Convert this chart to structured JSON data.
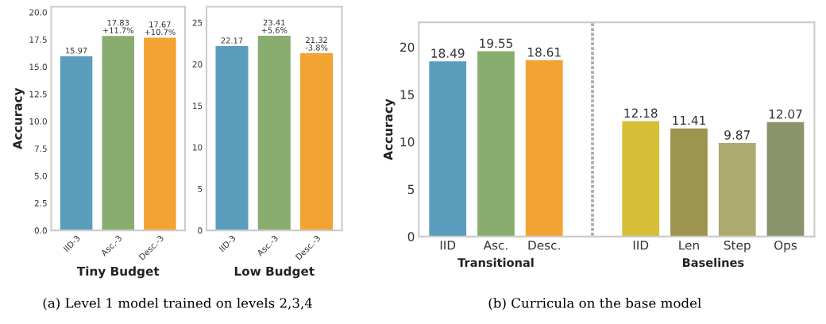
{
  "chart_data": [
    {
      "type": "bar",
      "categories": [
        "IID-3",
        "Asc.-3",
        "Desc.-3"
      ],
      "values": [
        15.97,
        17.83,
        17.67
      ],
      "colors": [
        "#5a9dbd",
        "#88ad6f",
        "#f2a332"
      ],
      "value_labels": [
        "15.97",
        "17.83\n+11.7%",
        "17.67\n+10.7%"
      ],
      "xlabel": "Tiny Budget",
      "ylabel": "Accuracy",
      "ylim": [
        0,
        20.5
      ],
      "yticks": [
        {
          "value": 0,
          "label": "0.0"
        },
        2.5,
        {
          "value": 5,
          "label": "5.0"
        },
        7.5,
        {
          "value": 10,
          "label": "10.0"
        },
        12.5,
        {
          "value": 15,
          "label": "15.0"
        },
        17.5,
        {
          "value": 20,
          "label": "20.0"
        }
      ],
      "annotations": [
        "(a) Level 1 model trained on levels 2,3,4"
      ],
      "grid": false,
      "legend": false
    },
    {
      "type": "bar",
      "categories": [
        "IID-3",
        "Asc.-3",
        "Desc.-3"
      ],
      "values": [
        22.17,
        23.41,
        21.32
      ],
      "colors": [
        "#5a9dbd",
        "#88ad6f",
        "#f2a332"
      ],
      "value_labels": [
        "22.17",
        "23.41\n+5.6%",
        "21.32\n-3.8%"
      ],
      "xlabel": "Low Budget",
      "ylim": [
        0,
        26.9
      ],
      "yticks": [
        0,
        5,
        10,
        15,
        20,
        25
      ],
      "grid": false,
      "legend": false
    },
    {
      "type": "bar",
      "categories": [
        "IID",
        "Asc.",
        "Desc.",
        null,
        "IID",
        "Len",
        "Step",
        "Ops"
      ],
      "values": [
        18.49,
        19.55,
        18.61,
        null,
        12.18,
        11.41,
        9.87,
        12.07
      ],
      "colors": [
        "#5a9dbd",
        "#88ad6f",
        "#f2a332",
        "#ffffff",
        "#d6c038",
        "#9d944f",
        "#adab70",
        "#8a946b"
      ],
      "data_labels": true,
      "ylabel": "Accuracy",
      "ylim": [
        0,
        22.6
      ],
      "yticks": [
        0,
        5,
        10,
        15,
        20
      ],
      "annotations": [
        "Transitional",
        "Baselines",
        "(b) Curricula on the base model"
      ],
      "grid": false,
      "legend": false
    }
  ]
}
